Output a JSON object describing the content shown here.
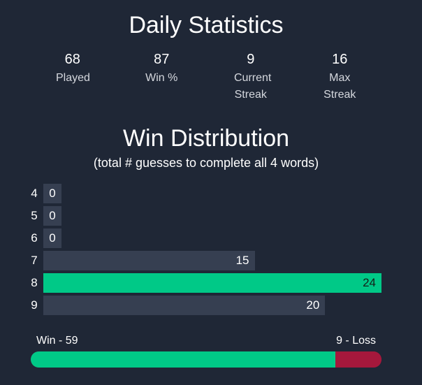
{
  "header": {
    "title": "Daily Statistics"
  },
  "stats": [
    {
      "value": "68",
      "label": "Played"
    },
    {
      "value": "87",
      "label": "Win %"
    },
    {
      "value": "9",
      "label": "Current Streak"
    },
    {
      "value": "16",
      "label": "Max Streak"
    }
  ],
  "distribution": {
    "title": "Win Distribution",
    "subtitle": "(total # guesses to complete all 4 words)",
    "rows": [
      {
        "key": "4",
        "value": 0
      },
      {
        "key": "5",
        "value": 0
      },
      {
        "key": "6",
        "value": 0
      },
      {
        "key": "7",
        "value": 15
      },
      {
        "key": "8",
        "value": 24
      },
      {
        "key": "9",
        "value": 20
      }
    ],
    "max_value": 24,
    "best_key": "8"
  },
  "win_loss": {
    "win_label": "Win - 59",
    "loss_label": "9 - Loss",
    "wins": 59,
    "losses": 9
  },
  "colors": {
    "background": "#1f2736",
    "bar": "#363f51",
    "win_accent": "#00c987",
    "loss_accent": "#a5183c"
  }
}
